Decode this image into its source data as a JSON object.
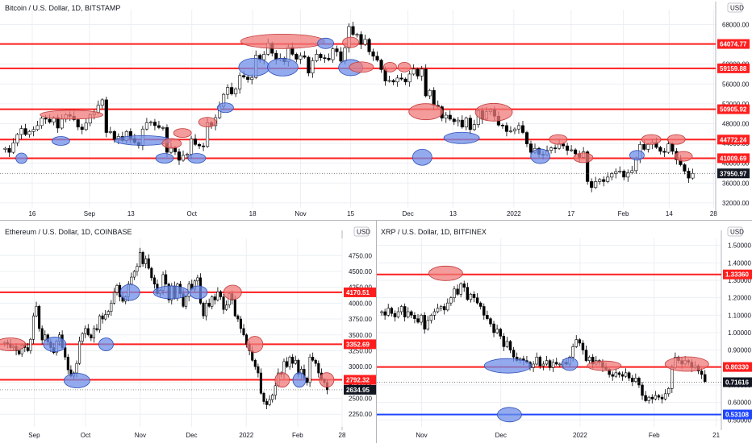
{
  "colors": {
    "up": "#ffffff",
    "down": "#000000",
    "wick": "#000000",
    "resistance": "#ff1e1e",
    "support": "#1e46ff",
    "zone_red": "#f07a7a",
    "zone_blue": "#6f8fe8",
    "grid": "#eceff3",
    "border": "#b2b5be",
    "last": "#131722"
  },
  "chart_data": [
    {
      "type": "candlestick",
      "title": "Bitcoin / U.S. Dollar, 1D, BITSTAMP",
      "currency": "USD",
      "ylim": [
        31000,
        71000
      ],
      "y_ticks": [
        "68000.00",
        "64000.00",
        "60000.00",
        "56000.00",
        "52000.00",
        "48000.00",
        "44000.00",
        "40000.00",
        "36000.00",
        "32000.00"
      ],
      "x_ticks": [
        "16",
        "Sep",
        "13",
        "Oct",
        "18",
        "Nov",
        "15",
        "Dec",
        "13",
        "2022",
        "17",
        "Feb",
        "14",
        "28"
      ],
      "levels": [
        {
          "value": 64074.77,
          "label": "64074.77",
          "color": "#ff1e1e"
        },
        {
          "value": 59159.88,
          "label": "59159.88",
          "color": "#ff1e1e"
        },
        {
          "value": 50905.92,
          "label": "50905.92",
          "color": "#ff1e1e"
        },
        {
          "value": 44772.24,
          "label": "44772.24",
          "color": "#ff1e1e"
        },
        {
          "value": 41009.69,
          "label": "41009.69",
          "color": "#ff1e1e"
        }
      ],
      "last_price": {
        "value": 37950.97,
        "label": "37950.97"
      },
      "closes": [
        43000,
        42200,
        44100,
        45800,
        47000,
        45800,
        46400,
        46800,
        47600,
        49100,
        48900,
        48300,
        49200,
        47100,
        48900,
        49800,
        49500,
        48800,
        47300,
        46800,
        48100,
        49800,
        50200,
        51700,
        52800,
        46200,
        46400,
        44800,
        45400,
        44600,
        46400,
        45000,
        44200,
        43600,
        46900,
        48200,
        48300,
        47600,
        47200,
        47200,
        42200,
        43200,
        42300,
        40600,
        41600,
        41800,
        44900,
        43800,
        43500,
        43400,
        48200,
        47600,
        49200,
        51500,
        53900,
        55300,
        54000,
        55000,
        57700,
        57400,
        56900,
        57300,
        61800,
        60900,
        62000,
        64200,
        62200,
        60900,
        61200,
        60500,
        63400,
        62000,
        61000,
        61700,
        61400,
        58200,
        60700,
        62000,
        61300,
        61200,
        60900,
        63100,
        62500,
        60600,
        63300,
        67600,
        66000,
        66000,
        64000,
        65000,
        62500,
        61600,
        60800,
        58900,
        56600,
        56700,
        56400,
        57200,
        57000,
        56400,
        58000,
        59000,
        57600,
        59000,
        53600,
        54700,
        51700,
        51400,
        49100,
        49700,
        48900,
        48400,
        48700,
        47300,
        49100,
        46800,
        47800,
        50600,
        48900,
        50400,
        50800,
        49500,
        47700,
        47600,
        46400,
        46500,
        46900,
        47600,
        46200,
        43900,
        42200,
        43000,
        41800,
        41700,
        42600,
        43100,
        43000,
        43900,
        43500,
        42600,
        42700,
        41900,
        41200,
        42300,
        36300,
        35100,
        36300,
        36700,
        36300,
        37200,
        37900,
        38300,
        38400,
        37200,
        38100,
        38500,
        41000,
        43800,
        42800,
        43800,
        44200,
        43200,
        42400,
        42200,
        43900,
        42400,
        40700,
        39700,
        38400,
        37000,
        37950
      ]
    },
    {
      "type": "candlestick",
      "title": "Ethereum / U.S. Dollar, 1D, COINBASE",
      "currency": "USD",
      "ylim": [
        2050,
        5020
      ],
      "y_ticks": [
        "4750.00",
        "4500.00",
        "4250.00",
        "4000.00",
        "3750.00",
        "3500.00",
        "3250.00",
        "3000.00",
        "2750.00",
        "2500.00",
        "2250.00"
      ],
      "x_ticks": [
        "Sep",
        "Oct",
        "Nov",
        "Dec",
        "2022",
        "Feb",
        "28"
      ],
      "levels": [
        {
          "value": 4170.51,
          "label": "4170.51",
          "color": "#ff1e1e"
        },
        {
          "value": 3352.69,
          "label": "3352.69",
          "color": "#ff1e1e"
        },
        {
          "value": 2792.32,
          "label": "2792.32",
          "color": "#ff1e1e"
        }
      ],
      "last_price": {
        "value": 2634.95,
        "label": "2634.95"
      },
      "closes": [
        3380,
        3360,
        3300,
        3320,
        3250,
        3200,
        3340,
        3300,
        3250,
        3430,
        3800,
        3950,
        3600,
        3420,
        3500,
        3390,
        3300,
        3220,
        3400,
        3500,
        3300,
        3150,
        2950,
        2850,
        2900,
        3050,
        3400,
        3520,
        3600,
        3500,
        3450,
        3600,
        3580,
        3800,
        3750,
        3820,
        3870,
        4000,
        4170,
        4280,
        4100,
        4030,
        4100,
        4300,
        4410,
        4500,
        4580,
        4800,
        4620,
        4700,
        4550,
        4400,
        4300,
        4150,
        4200,
        4450,
        4300,
        4050,
        4270,
        4080,
        4300,
        4150,
        3950,
        4100,
        4300,
        4220,
        4350,
        4400,
        4000,
        3800,
        4000,
        3950,
        4100,
        4050,
        4180,
        4100,
        3900,
        3970,
        4150,
        4050,
        3800,
        3750,
        3600,
        3500,
        3350,
        3250,
        3100,
        3000,
        2900,
        2580,
        2450,
        2400,
        2480,
        2550,
        2700,
        2900,
        2880,
        3080,
        3000,
        3150,
        3050,
        3100,
        2880,
        2960,
        2820,
        2750,
        3150,
        3100,
        3050,
        2900,
        2800,
        2750,
        2635
      ]
    },
    {
      "type": "candlestick",
      "title": "XRP / U.S. Dollar, 1D, BITFINEX",
      "currency": "USD",
      "ylim": [
        0.46,
        1.54
      ],
      "y_ticks": [
        "1.50000",
        "1.40000",
        "1.30000",
        "1.20000",
        "1.10000",
        "1.00000",
        "0.90000",
        "0.80000",
        "0.70000",
        "0.60000",
        "0.50000"
      ],
      "x_ticks": [
        "Nov",
        "Dec",
        "2022",
        "Feb",
        "21"
      ],
      "levels": [
        {
          "value": 1.3336,
          "label": "1.33360",
          "color": "#ff1e1e"
        },
        {
          "value": 0.8033,
          "label": "0.80330",
          "color": "#ff1e1e"
        },
        {
          "value": 0.53108,
          "label": "0.53108",
          "color": "#1e46ff"
        }
      ],
      "last_price": {
        "value": 0.71616,
        "label": "0.71616"
      },
      "closes": [
        1.12,
        1.1,
        1.14,
        1.11,
        1.09,
        1.12,
        1.15,
        1.09,
        1.12,
        1.1,
        1.08,
        1.06,
        1.1,
        1.02,
        1.07,
        1.1,
        1.12,
        1.14,
        1.15,
        1.13,
        1.17,
        1.2,
        1.25,
        1.22,
        1.28,
        1.26,
        1.19,
        1.22,
        1.2,
        1.17,
        1.15,
        1.1,
        1.08,
        1.05,
        1.0,
        1.02,
        0.98,
        0.92,
        0.95,
        0.9,
        0.86,
        0.84,
        0.85,
        0.84,
        0.83,
        0.8,
        0.82,
        0.86,
        0.81,
        0.82,
        0.84,
        0.8,
        0.83,
        0.82,
        0.82,
        0.83,
        0.82,
        0.86,
        0.92,
        0.96,
        0.94,
        0.9,
        0.84,
        0.86,
        0.82,
        0.84,
        0.83,
        0.8,
        0.79,
        0.76,
        0.75,
        0.77,
        0.76,
        0.75,
        0.77,
        0.74,
        0.72,
        0.74,
        0.7,
        0.64,
        0.61,
        0.63,
        0.62,
        0.64,
        0.63,
        0.62,
        0.65,
        0.68,
        0.8,
        0.86,
        0.84,
        0.82,
        0.84,
        0.83,
        0.8,
        0.81,
        0.78,
        0.76,
        0.72
      ]
    }
  ]
}
